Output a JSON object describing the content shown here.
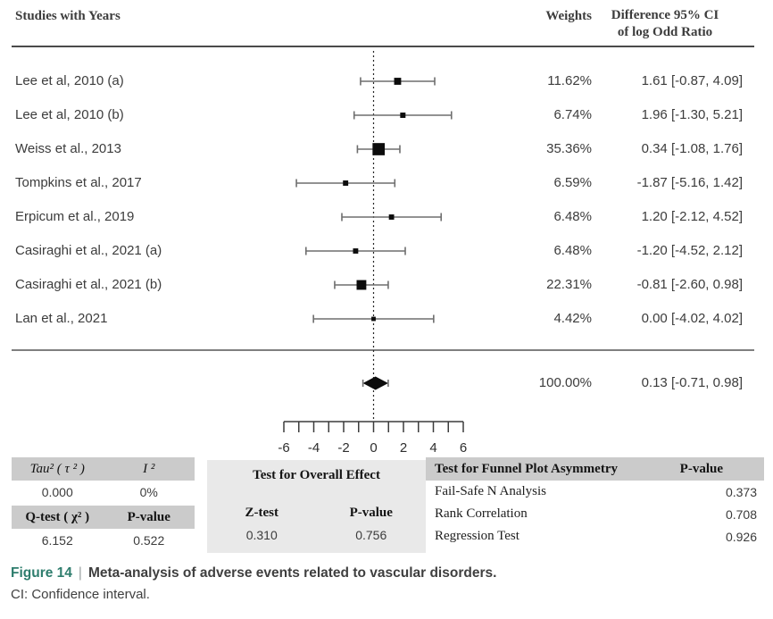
{
  "header": {
    "studies": "Studies with Years",
    "weights": "Weights",
    "ci_line1": "Difference 95% CI",
    "ci_line2": "of log Odd Ratio"
  },
  "chart_data": {
    "type": "forest",
    "x_axis": {
      "range": [
        -6,
        6
      ],
      "tick_labels": [
        -6,
        -4,
        -2,
        0,
        2,
        4,
        6
      ],
      "minor_tick_step": 1
    },
    "zero_line": 0,
    "studies": [
      {
        "label": "Lee et  al, 2010 (a)",
        "weight_pct": 11.62,
        "weight": "11.62%",
        "estimate": 1.61,
        "ci_low": -0.87,
        "ci_high": 4.09,
        "ci_text": "1.61 [-0.87, 4.09]"
      },
      {
        "label": "Lee et al, 2010 (b)",
        "weight_pct": 6.74,
        "weight": "6.74%",
        "estimate": 1.96,
        "ci_low": -1.3,
        "ci_high": 5.21,
        "ci_text": "1.96 [-1.30, 5.21]"
      },
      {
        "label": "Weiss et al., 2013",
        "weight_pct": 35.36,
        "weight": "35.36%",
        "estimate": 0.34,
        "ci_low": -1.08,
        "ci_high": 1.76,
        "ci_text": "0.34 [-1.08, 1.76]"
      },
      {
        "label": "Tompkins et al., 2017",
        "weight_pct": 6.59,
        "weight": "6.59%",
        "estimate": -1.87,
        "ci_low": -5.16,
        "ci_high": 1.42,
        "ci_text": "-1.87 [-5.16, 1.42]"
      },
      {
        "label": "Erpicum et al., 2019",
        "weight_pct": 6.48,
        "weight": "6.48%",
        "estimate": 1.2,
        "ci_low": -2.12,
        "ci_high": 4.52,
        "ci_text": "1.20 [-2.12, 4.52]"
      },
      {
        "label": "Casiraghi  et al., 2021 (a)",
        "weight_pct": 6.48,
        "weight": "6.48%",
        "estimate": -1.2,
        "ci_low": -4.52,
        "ci_high": 2.12,
        "ci_text": "-1.20 [-4.52, 2.12]"
      },
      {
        "label": "Casiraghi  et al., 2021 (b)",
        "weight_pct": 22.31,
        "weight": "22.31%",
        "estimate": -0.81,
        "ci_low": -2.6,
        "ci_high": 0.98,
        "ci_text": "-0.81 [-2.60, 0.98]"
      },
      {
        "label": "Lan et al., 2021",
        "weight_pct": 4.42,
        "weight": "4.42%",
        "estimate": 0.0,
        "ci_low": -4.02,
        "ci_high": 4.02,
        "ci_text": "0.00 [-4.02, 4.02]"
      }
    ],
    "overall": {
      "weight": "100.00%",
      "estimate": 0.13,
      "ci_low": -0.71,
      "ci_high": 0.98,
      "ci_text": "0.13 [-0.71, 0.98]"
    }
  },
  "stats": {
    "heterogeneity": {
      "tau_label": "Tau² ( τ ² )",
      "i2_label": "I ²",
      "tau_value": "0.000",
      "i2_value": "0%",
      "q_label": "Q-test ( χ² )",
      "q_p_label": "P-value",
      "q_value": "6.152",
      "q_p_value": "0.522"
    },
    "overall_effect": {
      "title": "Test for Overall Effect",
      "z_label": "Z-test",
      "p_label": "P-value",
      "z_value": "0.310",
      "p_value": "0.756"
    },
    "funnel": {
      "title": "Test for Funnel Plot Asymmetry",
      "p_label": "P-value",
      "rows": [
        {
          "label": "Fail-Safe N Analysis",
          "value": "0.373"
        },
        {
          "label": "Rank Correlation",
          "value": "0.708"
        },
        {
          "label": "Regression Test",
          "value": "0.926"
        }
      ]
    }
  },
  "caption": {
    "figure": "Figure 14",
    "separator": "|",
    "title": "Meta-analysis of adverse events related to vascular disorders.",
    "subtitle": "CI: Confidence interval."
  },
  "colors": {
    "accent_teal": "#2e7d6d",
    "caption_text": "#3f3f3f",
    "table_header_bg": "#cbcbcb",
    "panel_bg": "#e9e9e9",
    "bar_gray": "#6e6e6e",
    "marker_black": "#0c0c0c"
  }
}
